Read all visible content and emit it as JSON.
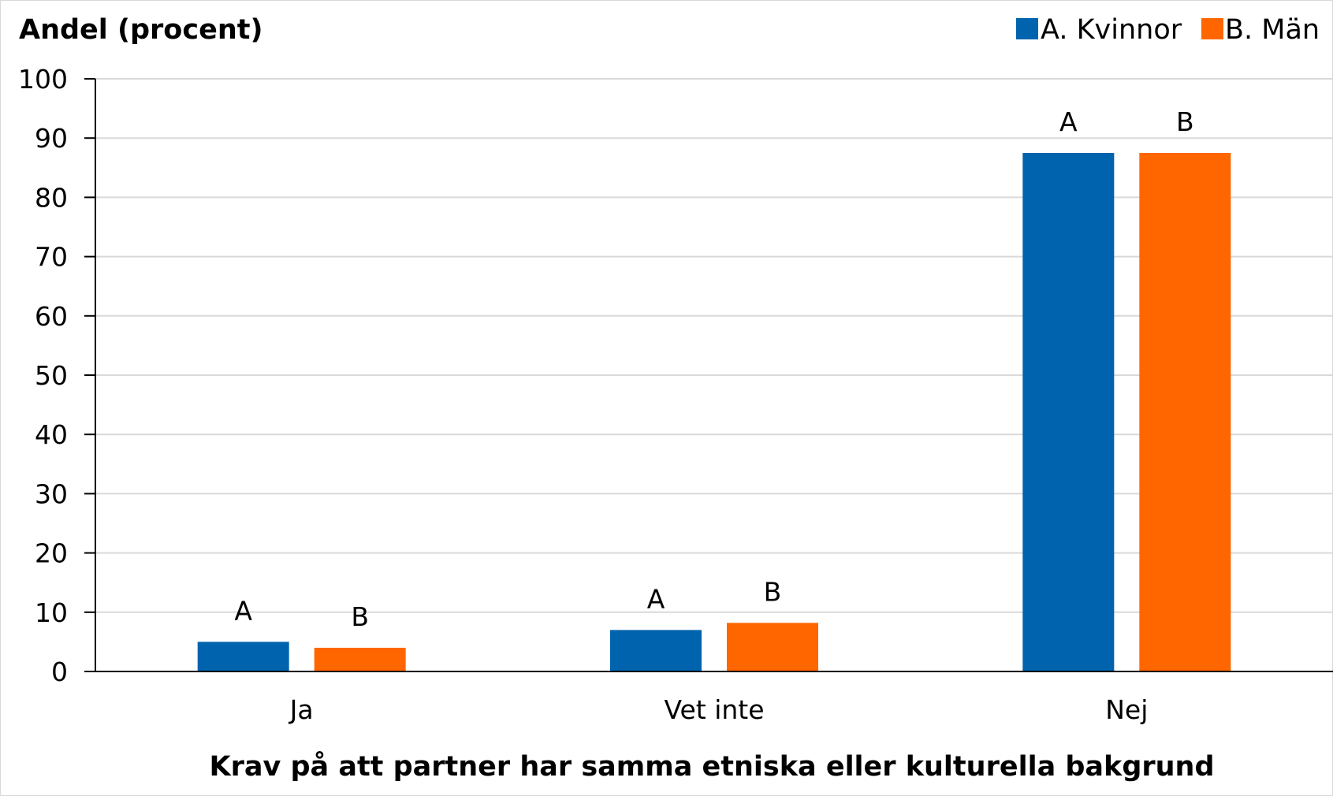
{
  "chart_data": {
    "type": "bar",
    "title": "",
    "ylabel": "Andel (procent)",
    "xlabel": "Krav på att partner har samma etniska eller kulturella  bakgrund",
    "ylim": [
      0,
      100
    ],
    "yticks": [
      "0",
      "10",
      "20",
      "30",
      "40",
      "50",
      "60",
      "70",
      "80",
      "90",
      "100"
    ],
    "categories": [
      "Ja",
      "Vet inte",
      "Nej"
    ],
    "grid": true,
    "legend_position": "top-right",
    "series": [
      {
        "name": "A. Kvinnor",
        "short_label": "A",
        "color": "#0063ae",
        "values": [
          5,
          7,
          87.5
        ]
      },
      {
        "name": "B. Män",
        "short_label": "B",
        "color": "#ff6600",
        "values": [
          4,
          8.2,
          87.5
        ]
      }
    ]
  }
}
